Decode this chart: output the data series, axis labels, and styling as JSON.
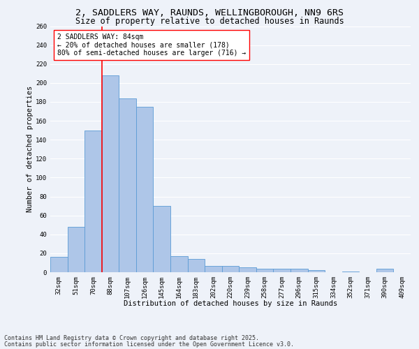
{
  "title_line1": "2, SADDLERS WAY, RAUNDS, WELLINGBOROUGH, NN9 6RS",
  "title_line2": "Size of property relative to detached houses in Raunds",
  "xlabel": "Distribution of detached houses by size in Raunds",
  "ylabel": "Number of detached properties",
  "categories": [
    "32sqm",
    "51sqm",
    "70sqm",
    "88sqm",
    "107sqm",
    "126sqm",
    "145sqm",
    "164sqm",
    "183sqm",
    "202sqm",
    "220sqm",
    "239sqm",
    "258sqm",
    "277sqm",
    "296sqm",
    "315sqm",
    "334sqm",
    "352sqm",
    "371sqm",
    "390sqm",
    "409sqm"
  ],
  "values": [
    16,
    48,
    150,
    208,
    184,
    175,
    70,
    17,
    14,
    7,
    7,
    5,
    4,
    4,
    4,
    2,
    0,
    1,
    0,
    4,
    0
  ],
  "bar_color": "#aec6e8",
  "bar_edge_color": "#5b9bd5",
  "background_color": "#eef2f9",
  "grid_color": "#ffffff",
  "vline_color": "red",
  "vline_pos": 2.5,
  "annotation_text": "2 SADDLERS WAY: 84sqm\n← 20% of detached houses are smaller (178)\n80% of semi-detached houses are larger (716) →",
  "annotation_box_color": "white",
  "annotation_box_edge": "red",
  "ylim": [
    0,
    260
  ],
  "yticks": [
    0,
    20,
    40,
    60,
    80,
    100,
    120,
    140,
    160,
    180,
    200,
    220,
    240,
    260
  ],
  "footer_line1": "Contains HM Land Registry data © Crown copyright and database right 2025.",
  "footer_line2": "Contains public sector information licensed under the Open Government Licence v3.0.",
  "title_fontsize": 9.5,
  "subtitle_fontsize": 8.5,
  "axis_label_fontsize": 7.5,
  "tick_fontsize": 6.5,
  "annotation_fontsize": 7,
  "footer_fontsize": 6
}
